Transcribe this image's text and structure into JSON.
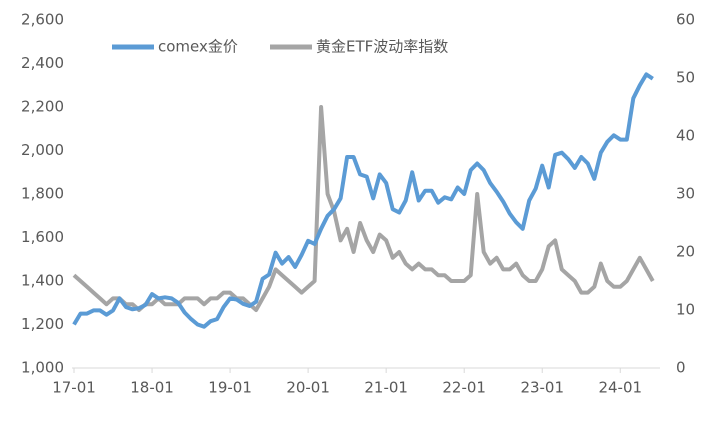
{
  "chart_data": {
    "type": "line",
    "categories": [
      "17-01",
      null,
      null,
      null,
      null,
      null,
      null,
      null,
      null,
      null,
      null,
      null,
      "18-01",
      null,
      null,
      null,
      null,
      null,
      null,
      null,
      null,
      null,
      null,
      null,
      "19-01",
      null,
      null,
      null,
      null,
      null,
      null,
      null,
      null,
      null,
      null,
      null,
      "20-01",
      null,
      null,
      null,
      null,
      null,
      null,
      null,
      null,
      null,
      null,
      null,
      "21-01",
      null,
      null,
      null,
      null,
      null,
      null,
      null,
      null,
      null,
      null,
      null,
      "22-01",
      null,
      null,
      null,
      null,
      null,
      null,
      null,
      null,
      null,
      null,
      null,
      "23-01",
      null,
      null,
      null,
      null,
      null,
      null,
      null,
      null,
      null,
      null,
      null,
      "24-01",
      null,
      null,
      null,
      null,
      null
    ],
    "series": [
      {
        "name": "comex金价",
        "color": "#5b9bd5",
        "axis": "y",
        "values": [
          1200,
          1250,
          1250,
          1265,
          1265,
          1245,
          1265,
          1320,
          1280,
          1270,
          1275,
          1290,
          1340,
          1320,
          1325,
          1320,
          1300,
          1255,
          1225,
          1200,
          1190,
          1215,
          1225,
          1280,
          1320,
          1315,
          1295,
          1285,
          1305,
          1410,
          1430,
          1530,
          1480,
          1510,
          1465,
          1520,
          1585,
          1570,
          1640,
          1700,
          1730,
          1780,
          1970,
          1970,
          1890,
          1880,
          1780,
          1890,
          1850,
          1730,
          1715,
          1770,
          1900,
          1770,
          1815,
          1815,
          1760,
          1785,
          1775,
          1830,
          1800,
          1910,
          1940,
          1910,
          1850,
          1810,
          1765,
          1710,
          1670,
          1640,
          1770,
          1825,
          1930,
          1830,
          1980,
          1990,
          1960,
          1920,
          1970,
          1940,
          1870,
          1990,
          2040,
          2070,
          2050,
          2050,
          2240,
          2300,
          2350,
          2330
        ]
      },
      {
        "name": "黄金ETF波动率指数",
        "color": "#a5a5a5",
        "axis": "y2",
        "values": [
          16,
          15,
          14,
          13,
          12,
          11,
          12,
          12,
          11,
          11,
          10,
          11,
          11,
          12,
          11,
          11,
          11,
          12,
          12,
          12,
          11,
          12,
          12,
          13,
          13,
          12,
          12,
          11,
          10,
          12,
          14,
          17,
          16,
          15,
          14,
          13,
          14,
          15,
          45,
          30,
          27,
          22,
          24,
          20,
          25,
          22,
          20,
          23,
          22,
          19,
          20,
          18,
          17,
          18,
          17,
          17,
          16,
          16,
          15,
          15,
          15,
          16,
          30,
          20,
          18,
          19,
          17,
          17,
          18,
          16,
          15,
          15,
          17,
          21,
          22,
          17,
          16,
          15,
          13,
          13,
          14,
          18,
          15,
          14,
          14,
          15,
          17,
          19,
          17,
          15
        ]
      }
    ],
    "ylim": [
      1000,
      2600
    ],
    "yticks": [
      {
        "value": 1000,
        "label": "1,000"
      },
      {
        "value": 1200,
        "label": "1,200"
      },
      {
        "value": 1400,
        "label": "1,400"
      },
      {
        "value": 1600,
        "label": "1,600"
      },
      {
        "value": 1800,
        "label": "1,800"
      },
      {
        "value": 2000,
        "label": "2,000"
      },
      {
        "value": 2200,
        "label": "2,200"
      },
      {
        "value": 2400,
        "label": "2,400"
      },
      {
        "value": 2600,
        "label": "2,600"
      }
    ],
    "y2lim": [
      0,
      60
    ],
    "y2ticks": [
      0,
      10,
      20,
      30,
      40,
      50,
      60
    ],
    "legend": "top"
  }
}
